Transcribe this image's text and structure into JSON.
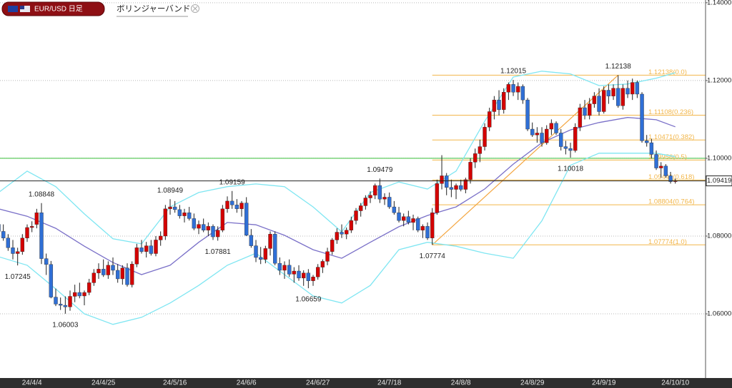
{
  "chart_data": {
    "type": "candlestick",
    "symbol": "EUR/USD 日足",
    "indicator": "ボリンジャーバンド",
    "categories": [
      null,
      null,
      null,
      null,
      null,
      null,
      null,
      "24/4/4",
      null,
      null,
      null,
      null,
      null,
      null,
      null,
      null,
      null,
      null,
      null,
      null,
      null,
      null,
      "24/4/25",
      null,
      null,
      null,
      null,
      null,
      null,
      null,
      null,
      null,
      null,
      null,
      null,
      null,
      null,
      "24/5/16",
      null,
      null,
      null,
      null,
      null,
      null,
      null,
      null,
      null,
      null,
      null,
      null,
      null,
      null,
      "24/6/6",
      null,
      null,
      null,
      null,
      null,
      null,
      null,
      null,
      null,
      null,
      null,
      null,
      null,
      null,
      "24/6/27",
      null,
      null,
      null,
      null,
      null,
      null,
      null,
      null,
      null,
      null,
      null,
      null,
      null,
      null,
      "24/7/18",
      null,
      null,
      null,
      null,
      null,
      null,
      null,
      null,
      null,
      null,
      null,
      null,
      null,
      null,
      "24/8/8",
      null,
      null,
      null,
      null,
      null,
      null,
      null,
      null,
      null,
      null,
      null,
      null,
      null,
      null,
      "24/8/29",
      null,
      null,
      null,
      null,
      null,
      null,
      null,
      null,
      null,
      null,
      null,
      null,
      null,
      null,
      "24/9/19",
      null,
      null,
      null,
      null,
      null,
      null,
      null,
      null,
      null,
      null,
      null,
      null,
      null,
      null,
      "24/10/10"
    ],
    "ohlc": [
      [
        1.083,
        1.0842,
        1.0801,
        1.0812
      ],
      [
        1.0812,
        1.083,
        1.0788,
        1.0795
      ],
      [
        1.0795,
        1.0805,
        1.0762,
        1.077
      ],
      [
        1.077,
        1.079,
        1.074,
        1.0755
      ],
      [
        1.0755,
        1.077,
        1.07245,
        1.076
      ],
      [
        1.076,
        1.0805,
        1.0752,
        1.0795
      ],
      [
        1.0795,
        1.083,
        1.0785,
        1.0822
      ],
      [
        1.0822,
        1.0838,
        1.081,
        1.0825
      ],
      [
        1.083,
        1.087,
        1.082,
        1.086
      ],
      [
        1.086,
        1.08848,
        1.0728,
        1.0742
      ],
      [
        1.0742,
        1.0755,
        1.07,
        1.0727
      ],
      [
        1.0727,
        1.0736,
        1.064,
        1.0643
      ],
      [
        1.0643,
        1.0665,
        1.062,
        1.0625
      ],
      [
        1.0625,
        1.0642,
        1.061,
        1.0622
      ],
      [
        1.0622,
        1.0645,
        1.06003,
        1.0618
      ],
      [
        1.0618,
        1.066,
        1.0608,
        1.0645
      ],
      [
        1.0645,
        1.0675,
        1.063,
        1.0655
      ],
      [
        1.0655,
        1.068,
        1.064,
        1.0646
      ],
      [
        1.0646,
        1.066,
        1.0622,
        1.0655
      ],
      [
        1.0655,
        1.069,
        1.0648,
        1.068
      ],
      [
        1.068,
        1.0715,
        1.0672,
        1.0705
      ],
      [
        1.0705,
        1.073,
        1.069,
        1.0715
      ],
      [
        1.0715,
        1.074,
        1.0695,
        1.07
      ],
      [
        1.07,
        1.0735,
        1.069,
        1.0725
      ],
      [
        1.0725,
        1.0745,
        1.07,
        1.0712
      ],
      [
        1.0712,
        1.0728,
        1.068,
        1.069
      ],
      [
        1.069,
        1.0725,
        1.0675,
        1.0718
      ],
      [
        1.0718,
        1.073,
        1.067,
        1.0675
      ],
      [
        1.0675,
        1.0735,
        1.0668,
        1.0728
      ],
      [
        1.0728,
        1.078,
        1.072,
        1.077
      ],
      [
        1.077,
        1.079,
        1.0755,
        1.076
      ],
      [
        1.076,
        1.0785,
        1.0745,
        1.0775
      ],
      [
        1.0775,
        1.079,
        1.075,
        1.0755
      ],
      [
        1.0755,
        1.08,
        1.0748,
        1.079
      ],
      [
        1.079,
        1.0812,
        1.0775,
        1.08
      ],
      [
        1.08,
        1.088,
        1.079,
        1.087
      ],
      [
        1.087,
        1.08949,
        1.0855,
        1.0875
      ],
      [
        1.0875,
        1.089,
        1.086,
        1.0868
      ],
      [
        1.0868,
        1.088,
        1.0845,
        1.0852
      ],
      [
        1.0852,
        1.087,
        1.0835,
        1.086
      ],
      [
        1.086,
        1.0875,
        1.084,
        1.0845
      ],
      [
        1.0845,
        1.0858,
        1.0815,
        1.082
      ],
      [
        1.082,
        1.084,
        1.0805,
        1.083
      ],
      [
        1.083,
        1.0845,
        1.081,
        1.0815
      ],
      [
        1.0815,
        1.0835,
        1.08,
        1.0825
      ],
      [
        1.0825,
        1.083,
        1.079,
        1.0798
      ],
      [
        1.0798,
        1.0825,
        1.07881,
        1.0815
      ],
      [
        1.0815,
        1.088,
        1.081,
        1.087
      ],
      [
        1.087,
        1.0902,
        1.086,
        1.089
      ],
      [
        1.089,
        1.09159,
        1.087,
        1.088
      ],
      [
        1.088,
        1.0895,
        1.086,
        1.087
      ],
      [
        1.087,
        1.089,
        1.085,
        1.0885
      ],
      [
        1.0885,
        1.09,
        1.08,
        1.0802
      ],
      [
        1.0802,
        1.0818,
        1.077,
        1.0775
      ],
      [
        1.0775,
        1.079,
        1.0733,
        1.0745
      ],
      [
        1.0745,
        1.0772,
        1.0728,
        1.074
      ],
      [
        1.074,
        1.0775,
        1.073,
        1.0768
      ],
      [
        1.0768,
        1.0812,
        1.075,
        1.0805
      ],
      [
        1.0805,
        1.0812,
        1.0725,
        1.073
      ],
      [
        1.073,
        1.0745,
        1.07,
        1.0712
      ],
      [
        1.0712,
        1.0735,
        1.069,
        1.0725
      ],
      [
        1.0725,
        1.074,
        1.0695,
        1.0702
      ],
      [
        1.0702,
        1.072,
        1.068,
        1.071
      ],
      [
        1.071,
        1.0725,
        1.0685,
        1.0692
      ],
      [
        1.0692,
        1.0712,
        1.0672,
        1.0705
      ],
      [
        1.0705,
        1.0715,
        1.06659,
        1.0685
      ],
      [
        1.0685,
        1.07,
        1.0672,
        1.0695
      ],
      [
        1.0695,
        1.0728,
        1.0688,
        1.072
      ],
      [
        1.072,
        1.074,
        1.0705,
        1.0735
      ],
      [
        1.0735,
        1.077,
        1.0725,
        1.076
      ],
      [
        1.076,
        1.0795,
        1.0752,
        1.079
      ],
      [
        1.079,
        1.082,
        1.078,
        1.081
      ],
      [
        1.081,
        1.083,
        1.0795,
        1.0805
      ],
      [
        1.0805,
        1.0822,
        1.0792,
        1.0815
      ],
      [
        1.0815,
        1.085,
        1.0808,
        1.084
      ],
      [
        1.084,
        1.0872,
        1.083,
        1.0865
      ],
      [
        1.0865,
        1.0885,
        1.085,
        1.0878
      ],
      [
        1.0878,
        1.0905,
        1.0868,
        1.0898
      ],
      [
        1.0898,
        1.0915,
        1.0885,
        1.0905
      ],
      [
        1.0905,
        1.0935,
        1.0895,
        1.093
      ],
      [
        1.093,
        1.09479,
        1.0885,
        1.0895
      ],
      [
        1.0895,
        1.091,
        1.088,
        1.09
      ],
      [
        1.09,
        1.0912,
        1.087,
        1.0875
      ],
      [
        1.0875,
        1.089,
        1.0855,
        1.086
      ],
      [
        1.086,
        1.0875,
        1.0835,
        1.084
      ],
      [
        1.084,
        1.0858,
        1.0825,
        1.085
      ],
      [
        1.085,
        1.0865,
        1.083,
        1.0835
      ],
      [
        1.0835,
        1.0855,
        1.0815,
        1.0845
      ],
      [
        1.0845,
        1.085,
        1.081,
        1.0815
      ],
      [
        1.0815,
        1.083,
        1.0795,
        1.0825
      ],
      [
        1.0825,
        1.0835,
        1.079,
        1.0795
      ],
      [
        1.0795,
        1.0872,
        1.07774,
        1.086
      ],
      [
        1.086,
        1.0945,
        1.0855,
        1.0935
      ],
      [
        1.0935,
        1.1008,
        1.092,
        1.0955
      ],
      [
        1.0955,
        1.0962,
        1.0905,
        1.0925
      ],
      [
        1.0925,
        1.0945,
        1.09,
        1.092
      ],
      [
        1.092,
        1.0935,
        1.0895,
        1.093
      ],
      [
        1.093,
        1.0945,
        1.0915,
        1.092
      ],
      [
        1.092,
        1.095,
        1.091,
        1.0945
      ],
      [
        1.0945,
        1.1,
        1.0935,
        1.099
      ],
      [
        1.099,
        1.1025,
        1.0975,
        1.1012
      ],
      [
        1.1012,
        1.1048,
        1.099,
        1.103
      ],
      [
        1.103,
        1.109,
        1.102,
        1.108
      ],
      [
        1.108,
        1.113,
        1.107,
        1.112
      ],
      [
        1.112,
        1.116,
        1.11,
        1.115
      ],
      [
        1.115,
        1.1175,
        1.111,
        1.1125
      ],
      [
        1.1125,
        1.118,
        1.1115,
        1.117
      ],
      [
        1.117,
        1.1195,
        1.115,
        1.119
      ],
      [
        1.119,
        1.12015,
        1.116,
        1.117
      ],
      [
        1.117,
        1.1195,
        1.115,
        1.1185
      ],
      [
        1.1185,
        1.119,
        1.114,
        1.115
      ],
      [
        1.115,
        1.1155,
        1.107,
        1.1075
      ],
      [
        1.1075,
        1.1092,
        1.1055,
        1.106
      ],
      [
        1.106,
        1.108,
        1.104,
        1.1065
      ],
      [
        1.1065,
        1.108,
        1.103,
        1.104
      ],
      [
        1.104,
        1.1085,
        1.1035,
        1.1075
      ],
      [
        1.1075,
        1.11,
        1.106,
        1.109
      ],
      [
        1.109,
        1.1095,
        1.106,
        1.1065
      ],
      [
        1.1065,
        1.1075,
        1.102,
        1.103
      ],
      [
        1.103,
        1.1045,
        1.101,
        1.1025
      ],
      [
        1.1025,
        1.104,
        1.10018,
        1.102
      ],
      [
        1.102,
        1.109,
        1.1015,
        1.108
      ],
      [
        1.108,
        1.114,
        1.107,
        1.113
      ],
      [
        1.113,
        1.115,
        1.11,
        1.111
      ],
      [
        1.111,
        1.1155,
        1.11,
        1.114
      ],
      [
        1.114,
        1.117,
        1.113,
        1.116
      ],
      [
        1.116,
        1.118,
        1.111,
        1.112
      ],
      [
        1.112,
        1.1185,
        1.1115,
        1.1175
      ],
      [
        1.1175,
        1.119,
        1.114,
        1.116
      ],
      [
        1.116,
        1.119,
        1.115,
        1.118
      ],
      [
        1.118,
        1.12138,
        1.113,
        1.1135
      ],
      [
        1.1135,
        1.119,
        1.1125,
        1.118
      ],
      [
        1.118,
        1.12,
        1.1155,
        1.1165
      ],
      [
        1.1165,
        1.1205,
        1.115,
        1.1195
      ],
      [
        1.1195,
        1.12,
        1.1155,
        1.1165
      ],
      [
        1.1165,
        1.117,
        1.104,
        1.1045
      ],
      [
        1.1045,
        1.106,
        1.103,
        1.104
      ],
      [
        1.104,
        1.105,
        1.1,
        1.101
      ],
      [
        1.101,
        1.102,
        1.097,
        1.0975
      ],
      [
        1.0975,
        1.099,
        1.095,
        1.098
      ],
      [
        1.098,
        1.0985,
        1.095,
        1.0955
      ],
      [
        1.0955,
        1.0965,
        1.0935,
        1.094
      ],
      [
        1.094,
        1.0948,
        1.0935,
        1.09419
      ]
    ],
    "up_color": "#d40000",
    "down_color": "#2f6fd6",
    "ylim": [
      1.0435,
      1.1407
    ],
    "yticks": [
      {
        "value": 1.06,
        "label": "1.06000"
      },
      {
        "value": 1.08,
        "label": "1.08000"
      },
      {
        "value": 1.1,
        "label": "1.10000"
      },
      {
        "value": 1.12,
        "label": "1.12000"
      },
      {
        "value": 1.14,
        "label": "1.14000"
      }
    ],
    "grid": true,
    "bands": {
      "x": [
        0,
        6,
        12,
        18,
        24,
        30,
        36,
        42,
        48,
        54,
        60,
        66,
        72,
        78,
        84,
        90,
        96,
        102,
        108,
        114,
        120,
        126,
        132,
        138,
        142
      ],
      "upper": [
        1.0912,
        1.0967,
        1.0927,
        1.0857,
        1.0793,
        1.078,
        1.0875,
        1.0912,
        1.0927,
        1.0934,
        1.0927,
        1.0875,
        1.0811,
        1.0912,
        1.0939,
        1.0921,
        1.0967,
        1.1095,
        1.1209,
        1.1224,
        1.1217,
        1.1187,
        1.1191,
        1.1206,
        1.122
      ],
      "middle": [
        1.087,
        1.0851,
        1.082,
        1.0774,
        1.0732,
        1.0701,
        1.0725,
        1.0784,
        1.0835,
        1.0829,
        1.0802,
        1.0765,
        1.0743,
        1.0784,
        1.0824,
        1.0853,
        1.0875,
        1.0921,
        1.0985,
        1.104,
        1.1073,
        1.1092,
        1.1105,
        1.1099,
        1.1081
      ],
      "lower": [
        1.0747,
        1.0725,
        1.0664,
        1.06,
        1.0573,
        1.0591,
        1.0628,
        1.0673,
        1.0725,
        1.0756,
        1.0701,
        1.0646,
        1.0628,
        1.0673,
        1.0765,
        1.0784,
        1.0774,
        1.0756,
        1.0743,
        1.0839,
        1.0982,
        1.1013,
        1.1013,
        1.1013,
        1.1004
      ],
      "band_color": "#7fe6f2",
      "middle_color": "#7a70c8"
    },
    "annotations": {
      "highs": [
        1.08848,
        1.08949,
        1.09159,
        1.09479,
        1.12015,
        1.12138
      ],
      "lows": [
        1.07245,
        1.06003,
        1.07881,
        1.06659,
        1.07774,
        1.10018
      ]
    },
    "trendline": [
      1.07774,
      1.12138
    ],
    "trend_color": "#f4a640",
    "fibonacci": [
      {
        "value": 1.12138,
        "label": "1.12138(0.0)"
      },
      {
        "value": 1.11108,
        "label": "1.11108(0.236)"
      },
      {
        "value": 1.10471,
        "label": "1.10471(0.382)"
      },
      {
        "value": 1.09956,
        "label": "1.09956(0.5)"
      },
      {
        "value": 1.09441,
        "label": "1.09441(0.618)"
      },
      {
        "value": 1.08804,
        "label": "1.08804(0.764)"
      },
      {
        "value": 1.07774,
        "label": "1.07774(1.0)"
      }
    ],
    "fib_color": "#f2b64a",
    "horizontal_line": 1.1,
    "horizontal_color": "#4cc44c",
    "last_price": 1.09419
  }
}
